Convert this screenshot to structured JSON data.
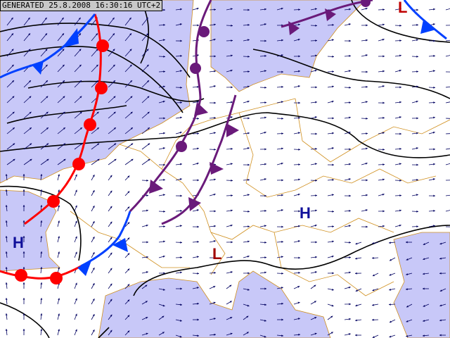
{
  "header": {
    "generated": "GENERATED 25.8.2008 16:30:16 UTC+2"
  },
  "pressure_centers": [
    {
      "type": "H",
      "color": "#10109a"
    },
    {
      "type": "H",
      "color": "#10109a"
    },
    {
      "type": "L",
      "color": "#a00000"
    },
    {
      "type": "L",
      "color": "#c00000"
    }
  ],
  "colors": {
    "sea": "#c8c8f8",
    "warm_front": "#ff0000",
    "cold_front": "#0040ff",
    "occluded_front": "#6a1a7a",
    "isobar": "#000000",
    "wind": "#000060",
    "borders": "#d09020"
  }
}
